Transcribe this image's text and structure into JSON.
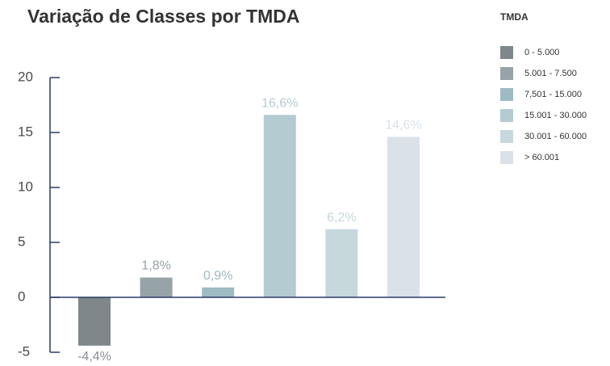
{
  "chart_data": {
    "type": "bar",
    "title": "Variação de Classes por TMDA",
    "legend_title": "TMDA",
    "categories": [
      "0 - 5.000",
      "5.001 - 7.500",
      "7,501 - 15.000",
      "15.001 - 30.000",
      "30.001 - 60.000",
      "> 60.001"
    ],
    "values": [
      -4.4,
      1.8,
      0.9,
      16.6,
      6.2,
      14.6
    ],
    "value_labels": [
      "-4,4%",
      "1,8%",
      "0,9%",
      "16,6%",
      "6,2%",
      "14,6%"
    ],
    "colors": [
      "#7e888a",
      "#96a4a7",
      "#9ebbc3",
      "#b4cbd2",
      "#c7d8dc",
      "#dae2e8"
    ],
    "ylim": [
      -5,
      20
    ],
    "yticks": [
      -5,
      0,
      5,
      10,
      15,
      20
    ],
    "legend": "right"
  }
}
